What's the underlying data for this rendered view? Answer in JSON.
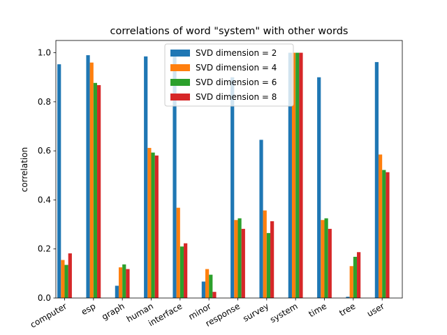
{
  "chart_data": {
    "type": "bar",
    "title": "correlations of word \"system\" with other words",
    "xlabel": "",
    "ylabel": "correlation",
    "ylim": [
      0,
      1.05
    ],
    "yticks": [
      0.0,
      0.2,
      0.4,
      0.6,
      0.8,
      1.0
    ],
    "ytick_labels": [
      "0.0",
      "0.2",
      "0.4",
      "0.6",
      "0.8",
      "1.0"
    ],
    "grid": false,
    "legend_position": "top-center",
    "categories": [
      "computer",
      "esp",
      "graph",
      "human",
      "interface",
      "minor",
      "response",
      "survey",
      "system",
      "time",
      "tree",
      "user"
    ],
    "series": [
      {
        "name": "SVD dimension = 2",
        "color": "#1f77b4",
        "values": [
          0.953,
          0.99,
          0.05,
          0.985,
          1.0,
          0.067,
          0.9,
          0.645,
          1.0,
          0.9,
          0.005,
          0.962
        ]
      },
      {
        "name": "SVD dimension = 4",
        "color": "#ff7f0e",
        "values": [
          0.155,
          0.96,
          0.125,
          0.612,
          0.368,
          0.118,
          0.318,
          0.357,
          1.0,
          0.318,
          0.13,
          0.585
        ]
      },
      {
        "name": "SVD dimension = 6",
        "color": "#2ca02c",
        "values": [
          0.135,
          0.877,
          0.137,
          0.593,
          0.21,
          0.095,
          0.325,
          0.265,
          1.0,
          0.325,
          0.168,
          0.522
        ]
      },
      {
        "name": "SVD dimension = 8",
        "color": "#d62728",
        "values": [
          0.182,
          0.868,
          0.118,
          0.581,
          0.223,
          0.025,
          0.282,
          0.313,
          1.0,
          0.282,
          0.187,
          0.513
        ]
      }
    ]
  }
}
